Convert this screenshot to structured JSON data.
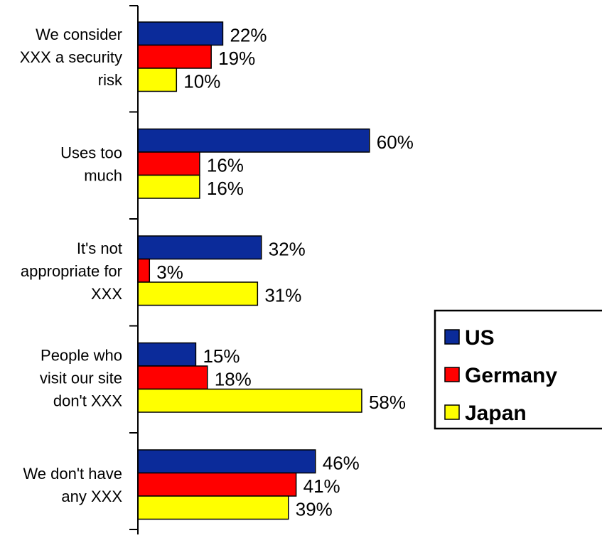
{
  "chart_data": {
    "type": "bar",
    "orientation": "horizontal",
    "categories": [
      [
        "We consider",
        "XXX a security",
        "risk"
      ],
      [
        "Uses too",
        "much"
      ],
      [
        "It's not",
        "appropriate for",
        "XXX"
      ],
      [
        "People who",
        "visit our site",
        "don't XXX"
      ],
      [
        "We don't have",
        "any XXX"
      ]
    ],
    "series": [
      {
        "name": "US",
        "color": "#0b2b9a",
        "values": [
          22,
          60,
          32,
          15,
          46
        ]
      },
      {
        "name": "Germany",
        "color": "#ff0000",
        "values": [
          19,
          16,
          3,
          18,
          41
        ]
      },
      {
        "name": "Japan",
        "color": "#ffff00",
        "values": [
          10,
          16,
          31,
          58,
          39
        ]
      }
    ],
    "value_suffix": "%",
    "xlim": [
      0,
      100
    ],
    "grid": false,
    "legend_position": "right"
  }
}
